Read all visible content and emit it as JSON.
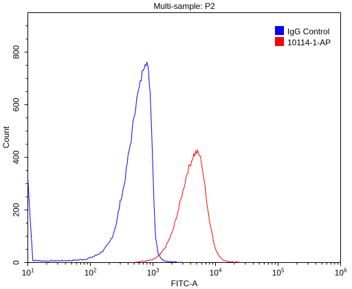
{
  "chart_data": {
    "type": "line",
    "title": "Multi-sample: P2",
    "xlabel": "FITC-A",
    "ylabel": "Count",
    "x_scale": "log",
    "xlim": [
      10,
      1000000
    ],
    "ylim": [
      0,
      950
    ],
    "x_ticks": [
      {
        "value": 10,
        "base": "10",
        "exp": "1"
      },
      {
        "value": 100,
        "base": "10",
        "exp": "2"
      },
      {
        "value": 1000,
        "base": "10",
        "exp": "3"
      },
      {
        "value": 10000,
        "base": "10",
        "exp": "4"
      },
      {
        "value": 100000,
        "base": "10",
        "exp": "5"
      },
      {
        "value": 1000000,
        "base": "10",
        "exp": "6"
      }
    ],
    "y_ticks": [
      0,
      200,
      400,
      600,
      800
    ],
    "grid": false,
    "legend_position": "top-right",
    "series": [
      {
        "name": "IgG Control",
        "color": "#0000ff",
        "x": [
          10,
          12,
          20,
          30,
          50,
          80,
          100,
          130,
          160,
          200,
          230,
          260,
          300,
          350,
          400,
          450,
          500,
          550,
          600,
          650,
          700,
          750,
          800,
          850,
          900,
          950,
          1000,
          1050,
          1100,
          1200,
          1300,
          1500,
          1800,
          2000,
          2500,
          3000
        ],
        "y": [
          320,
          8,
          6,
          7,
          8,
          12,
          18,
          30,
          45,
          75,
          105,
          150,
          230,
          300,
          400,
          470,
          560,
          620,
          660,
          700,
          740,
          765,
          760,
          720,
          650,
          520,
          350,
          200,
          100,
          40,
          20,
          8,
          4,
          2,
          1,
          0
        ]
      },
      {
        "name": "10114-1-AP",
        "color": "#ff0000",
        "x": [
          500,
          700,
          1000,
          1300,
          1600,
          2000,
          2300,
          2600,
          3000,
          3500,
          4000,
          4500,
          5000,
          5500,
          6000,
          6500,
          7000,
          8000,
          9000,
          10000,
          11000,
          13000,
          15000,
          20000,
          25000
        ],
        "y": [
          2,
          5,
          10,
          30,
          60,
          110,
          160,
          210,
          270,
          340,
          380,
          410,
          420,
          410,
          380,
          320,
          260,
          160,
          100,
          50,
          30,
          12,
          5,
          2,
          0
        ]
      }
    ]
  }
}
